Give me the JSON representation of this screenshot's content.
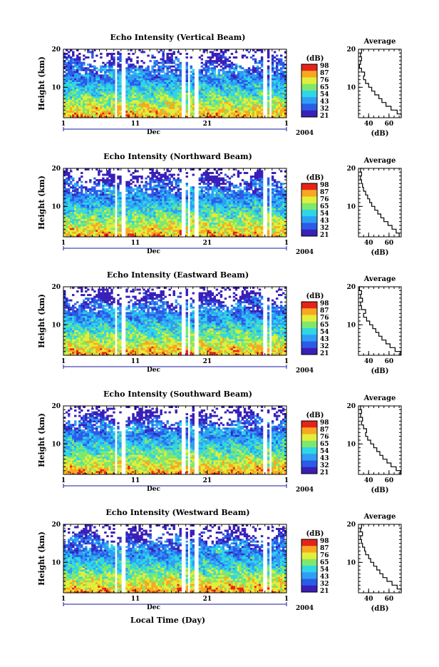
{
  "figure": {
    "xlabel": "Local Time (Day)",
    "month_label": "Dec",
    "year_label": "2004",
    "colorbar_unit": "(dB)",
    "colorbar_ticks": [
      "98",
      "87",
      "76",
      "65",
      "54",
      "43",
      "32",
      "21"
    ],
    "average_title": "Average",
    "average_xlabel": "(dB)",
    "colors": {
      "scale": [
        "#3a1fb8",
        "#2a5ce8",
        "#2f9ef4",
        "#2fd6e6",
        "#7ee86e",
        "#e2ee3a",
        "#f7a822",
        "#e4231a"
      ]
    }
  },
  "chart_data": [
    {
      "type": "heatmap",
      "title": "Echo Intensity (Vertical Beam)",
      "ylabel": "Height (km)",
      "xlabel": "Local Time (Day)",
      "x_range": [
        1,
        32
      ],
      "x_ticks": [
        "1",
        "11",
        "21",
        "1"
      ],
      "x_tick_values": [
        1,
        11,
        21,
        32
      ],
      "y_range": [
        2,
        20
      ],
      "y_ticks": [
        "10",
        "20"
      ],
      "y_tick_values": [
        10,
        20
      ],
      "data_gaps_day": [
        [
          8.1,
          8.6
        ],
        [
          9.0,
          9.5
        ],
        [
          17.4,
          17.9
        ],
        [
          18.2,
          18.5
        ],
        [
          19.2,
          19.7
        ],
        [
          28.8,
          29.3
        ],
        [
          29.6,
          30.0
        ]
      ],
      "color_scale_db": [
        21,
        98
      ],
      "average_profile": {
        "title": "Average",
        "xlabel": "(dB)",
        "x_ticks": [
          "40",
          "60"
        ],
        "x_tick_values": [
          40,
          60
        ],
        "x_range": [
          30,
          72
        ],
        "y_ticks": [
          "10",
          "20"
        ],
        "y_tick_values": [
          10,
          20
        ],
        "y_range": [
          2,
          20
        ],
        "height_km": [
          2,
          3,
          4,
          5,
          6,
          7,
          8,
          9,
          10,
          11,
          12,
          13,
          14,
          15,
          16,
          17,
          18,
          19,
          20
        ],
        "db": [
          72,
          68,
          62,
          57,
          53,
          50,
          46,
          43,
          40,
          37,
          35,
          36,
          33,
          31,
          32,
          33,
          32,
          33,
          34
        ]
      }
    },
    {
      "type": "heatmap",
      "title": "Echo Intensity (Northward Beam)",
      "ylabel": "Height (km)",
      "xlabel": "Local Time (Day)",
      "x_range": [
        1,
        32
      ],
      "x_ticks": [
        "1",
        "11",
        "21",
        "1"
      ],
      "x_tick_values": [
        1,
        11,
        21,
        32
      ],
      "y_range": [
        2,
        20
      ],
      "y_ticks": [
        "10",
        "20"
      ],
      "y_tick_values": [
        10,
        20
      ],
      "data_gaps_day": [
        [
          8.1,
          8.6
        ],
        [
          9.0,
          9.5
        ],
        [
          17.4,
          17.9
        ],
        [
          18.2,
          18.5
        ],
        [
          19.2,
          19.7
        ],
        [
          28.8,
          29.3
        ],
        [
          29.6,
          30.0
        ]
      ],
      "color_scale_db": [
        21,
        98
      ],
      "average_profile": {
        "title": "Average",
        "xlabel": "(dB)",
        "x_ticks": [
          "40",
          "60"
        ],
        "x_tick_values": [
          40,
          60
        ],
        "x_range": [
          30,
          72
        ],
        "y_ticks": [
          "10",
          "20"
        ],
        "y_tick_values": [
          10,
          20
        ],
        "y_range": [
          2,
          20
        ],
        "height_km": [
          2,
          3,
          4,
          5,
          6,
          7,
          8,
          9,
          10,
          11,
          12,
          13,
          14,
          15,
          16,
          17,
          18,
          19,
          20
        ],
        "db": [
          70,
          67,
          63,
          59,
          55,
          52,
          49,
          46,
          43,
          41,
          39,
          37,
          35,
          34,
          33,
          32,
          33,
          32,
          34
        ]
      }
    },
    {
      "type": "heatmap",
      "title": "Echo Intensity (Eastward Beam)",
      "ylabel": "Height (km)",
      "xlabel": "Local Time (Day)",
      "x_range": [
        1,
        32
      ],
      "x_ticks": [
        "1",
        "11",
        "21",
        "1"
      ],
      "x_tick_values": [
        1,
        11,
        21,
        32
      ],
      "y_range": [
        2,
        20
      ],
      "y_ticks": [
        "10",
        "20"
      ],
      "y_tick_values": [
        10,
        20
      ],
      "data_gaps_day": [
        [
          8.1,
          8.6
        ],
        [
          9.0,
          9.5
        ],
        [
          17.4,
          17.9
        ],
        [
          18.2,
          18.5
        ],
        [
          19.2,
          19.7
        ],
        [
          28.8,
          29.3
        ],
        [
          29.6,
          30.0
        ]
      ],
      "color_scale_db": [
        21,
        98
      ],
      "average_profile": {
        "title": "Average",
        "xlabel": "(dB)",
        "x_ticks": [
          "40",
          "60"
        ],
        "x_tick_values": [
          40,
          60
        ],
        "x_range": [
          30,
          72
        ],
        "y_ticks": [
          "10",
          "20"
        ],
        "y_tick_values": [
          10,
          20
        ],
        "y_range": [
          2,
          20
        ],
        "height_km": [
          2,
          3,
          4,
          5,
          6,
          7,
          8,
          9,
          10,
          11,
          12,
          13,
          14,
          15,
          16,
          17,
          18,
          19,
          20
        ],
        "db": [
          71,
          66,
          61,
          57,
          53,
          50,
          47,
          44,
          41,
          38,
          35,
          37,
          33,
          32,
          34,
          32,
          33,
          31,
          34
        ]
      }
    },
    {
      "type": "heatmap",
      "title": "Echo Intensity (Southward Beam)",
      "ylabel": "Height (km)",
      "xlabel": "Local Time (Day)",
      "x_range": [
        1,
        32
      ],
      "x_ticks": [
        "1",
        "11",
        "21",
        "1"
      ],
      "x_tick_values": [
        1,
        11,
        21,
        32
      ],
      "y_range": [
        2,
        20
      ],
      "y_ticks": [
        "10",
        "20"
      ],
      "y_tick_values": [
        10,
        20
      ],
      "data_gaps_day": [
        [
          8.1,
          8.6
        ],
        [
          9.0,
          9.5
        ],
        [
          17.4,
          17.9
        ],
        [
          18.2,
          18.5
        ],
        [
          19.2,
          19.7
        ],
        [
          28.8,
          29.3
        ],
        [
          29.6,
          30.0
        ]
      ],
      "color_scale_db": [
        21,
        98
      ],
      "average_profile": {
        "title": "Average",
        "xlabel": "(dB)",
        "x_ticks": [
          "40",
          "60"
        ],
        "x_tick_values": [
          40,
          60
        ],
        "x_range": [
          30,
          72
        ],
        "y_ticks": [
          "10",
          "20"
        ],
        "y_tick_values": [
          10,
          20
        ],
        "y_range": [
          2,
          20
        ],
        "height_km": [
          2,
          3,
          4,
          5,
          6,
          7,
          8,
          9,
          10,
          11,
          12,
          13,
          14,
          15,
          16,
          17,
          18,
          19,
          20
        ],
        "db": [
          71,
          67,
          62,
          58,
          54,
          51,
          48,
          45,
          42,
          39,
          37,
          38,
          35,
          33,
          34,
          32,
          33,
          32,
          34
        ]
      }
    },
    {
      "type": "heatmap",
      "title": "Echo Intensity (Westward Beam)",
      "ylabel": "Height (km)",
      "xlabel": "Local Time (Day)",
      "x_range": [
        1,
        32
      ],
      "x_ticks": [
        "1",
        "11",
        "21",
        "1"
      ],
      "x_tick_values": [
        1,
        11,
        21,
        32
      ],
      "y_range": [
        2,
        20
      ],
      "y_ticks": [
        "10",
        "20"
      ],
      "y_tick_values": [
        10,
        20
      ],
      "data_gaps_day": [
        [
          8.1,
          8.6
        ],
        [
          9.0,
          9.5
        ],
        [
          17.4,
          17.9
        ],
        [
          18.2,
          18.5
        ],
        [
          19.2,
          19.7
        ],
        [
          28.8,
          29.3
        ],
        [
          29.6,
          30.0
        ]
      ],
      "color_scale_db": [
        21,
        98
      ],
      "average_profile": {
        "title": "Average",
        "xlabel": "(dB)",
        "x_ticks": [
          "40",
          "60"
        ],
        "x_tick_values": [
          40,
          60
        ],
        "x_range": [
          30,
          72
        ],
        "y_ticks": [
          "10",
          "20"
        ],
        "y_tick_values": [
          10,
          20
        ],
        "y_range": [
          2,
          20
        ],
        "height_km": [
          2,
          3,
          4,
          5,
          6,
          7,
          8,
          9,
          10,
          11,
          12,
          13,
          14,
          15,
          16,
          17,
          18,
          19,
          20
        ],
        "db": [
          72,
          68,
          63,
          58,
          54,
          51,
          48,
          45,
          42,
          40,
          37,
          36,
          34,
          33,
          32,
          34,
          32,
          33,
          34
        ]
      }
    }
  ]
}
